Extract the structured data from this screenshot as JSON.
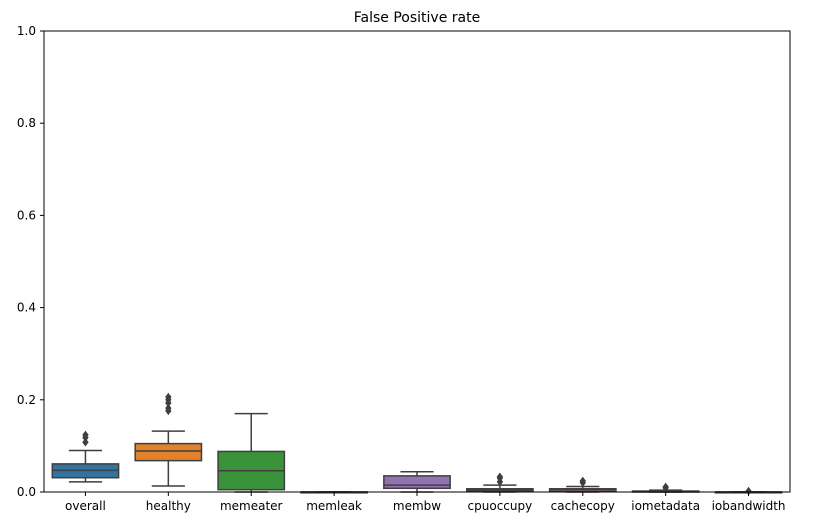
{
  "chart_data": {
    "type": "box",
    "title": "False Positive rate",
    "xlabel": "",
    "ylabel": "",
    "ylim": [
      0,
      1
    ],
    "yticks": [
      "0.0",
      "0.2",
      "0.4",
      "0.6",
      "0.8",
      "1.0"
    ],
    "ytick_values": [
      0,
      0.2,
      0.4,
      0.6,
      0.8,
      1.0
    ],
    "grid": false,
    "legend": "none",
    "categories": [
      "overall",
      "healthy",
      "memeater",
      "memleak",
      "membw",
      "cpuoccupy",
      "cachecopy",
      "iometadata",
      "iobandwidth"
    ],
    "boxes": [
      {
        "category": "overall",
        "color": "#3274a1",
        "whisker_low": 0.022,
        "q1": 0.031,
        "median": 0.047,
        "q3": 0.061,
        "whisker_high": 0.09,
        "outliers": [
          0.108,
          0.118,
          0.124
        ]
      },
      {
        "category": "healthy",
        "color": "#e1812c",
        "whisker_low": 0.013,
        "q1": 0.068,
        "median": 0.089,
        "q3": 0.105,
        "whisker_high": 0.132,
        "outliers": [
          0.176,
          0.182,
          0.193,
          0.2,
          0.206
        ]
      },
      {
        "category": "memeater",
        "color": "#3a923a",
        "whisker_low": 0.0,
        "q1": 0.005,
        "median": 0.046,
        "q3": 0.088,
        "whisker_high": 0.17,
        "outliers": []
      },
      {
        "category": "memleak",
        "color": "#c03d3e",
        "whisker_low": 0.0,
        "q1": 0.0,
        "median": 0.0,
        "q3": 0.0,
        "whisker_high": 0.0,
        "outliers": []
      },
      {
        "category": "membw",
        "color": "#9372b2",
        "whisker_low": 0.0,
        "q1": 0.008,
        "median": 0.015,
        "q3": 0.035,
        "whisker_high": 0.044,
        "outliers": []
      },
      {
        "category": "cpuoccupy",
        "color": "#845b53",
        "whisker_low": 0.0,
        "q1": 0.001,
        "median": 0.004,
        "q3": 0.007,
        "whisker_high": 0.015,
        "outliers": [
          0.022,
          0.03,
          0.033
        ]
      },
      {
        "category": "cachecopy",
        "color": "#d684bd",
        "whisker_low": 0.0,
        "q1": 0.001,
        "median": 0.005,
        "q3": 0.007,
        "whisker_high": 0.012,
        "outliers": [
          0.02,
          0.024
        ]
      },
      {
        "category": "iometadata",
        "color": "#7f7f7f",
        "whisker_low": 0.0,
        "q1": 0.0,
        "median": 0.001,
        "q3": 0.002,
        "whisker_high": 0.004,
        "outliers": [
          0.009,
          0.011
        ]
      },
      {
        "category": "iobandwidth",
        "color": "#a9aa35",
        "whisker_low": 0.0,
        "q1": 0.0,
        "median": 0.0,
        "q3": 0.0,
        "whisker_high": 0.0,
        "outliers": [
          0.002
        ]
      }
    ]
  }
}
